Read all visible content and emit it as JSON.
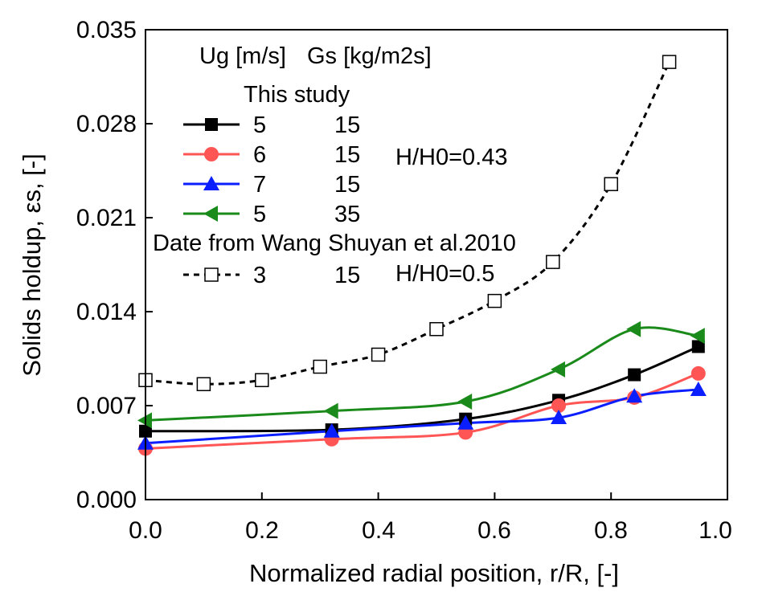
{
  "chart_data": {
    "type": "line",
    "title": "",
    "xlabel": "Normalized radial position, r/R, [-]",
    "ylabel": "Solids holdup, εs, [-]",
    "xlim": [
      0.0,
      1.0
    ],
    "ylim": [
      0.0,
      0.035
    ],
    "x_ticks": [
      "0.0",
      "0.2",
      "0.4",
      "0.6",
      "0.8",
      "1.0"
    ],
    "y_ticks": [
      "0.000",
      "0.007",
      "0.014",
      "0.021",
      "0.028",
      "0.035"
    ],
    "grid": false,
    "legend": {
      "header_ug": "Ug [m/s]",
      "header_gs": "Gs [kg/m2s]",
      "group1_title": "This study",
      "group1_condition": "H/H0=0.43",
      "group2_title": "Date from Wang Shuyan et al.2010",
      "group2_condition": "H/H0=0.5"
    },
    "series": [
      {
        "name": "5 15",
        "ug": "5",
        "gs": "15",
        "color": "#000000",
        "marker": "square",
        "dash": "solid",
        "x": [
          0.0,
          0.32,
          0.55,
          0.71,
          0.84,
          0.95
        ],
        "y": [
          0.0051,
          0.0052,
          0.006,
          0.0074,
          0.0093,
          0.0114
        ]
      },
      {
        "name": "6 15",
        "ug": "6",
        "gs": "15",
        "color": "#ff5555",
        "marker": "circle",
        "dash": "solid",
        "x": [
          0.0,
          0.32,
          0.55,
          0.71,
          0.84,
          0.95
        ],
        "y": [
          0.0038,
          0.0045,
          0.005,
          0.007,
          0.0076,
          0.0094
        ]
      },
      {
        "name": "7 15",
        "ug": "7",
        "gs": "15",
        "color": "#0a1eff",
        "marker": "triangle-up",
        "dash": "solid",
        "x": [
          0.0,
          0.32,
          0.55,
          0.71,
          0.84,
          0.95
        ],
        "y": [
          0.0042,
          0.0051,
          0.0057,
          0.0061,
          0.0077,
          0.0082
        ]
      },
      {
        "name": "5 35",
        "ug": "5",
        "gs": "35",
        "color": "#1a8a1a",
        "marker": "triangle-left",
        "dash": "solid",
        "x": [
          0.0,
          0.32,
          0.55,
          0.71,
          0.84,
          0.95
        ],
        "y": [
          0.0059,
          0.0066,
          0.0073,
          0.0097,
          0.0127,
          0.0122
        ]
      },
      {
        "name": "3 15",
        "ug": "3",
        "gs": "15",
        "color": "#000000",
        "marker": "open-square",
        "dash": "dashed",
        "x": [
          0.0,
          0.1,
          0.2,
          0.3,
          0.4,
          0.5,
          0.6,
          0.7,
          0.8,
          0.9
        ],
        "y": [
          0.0089,
          0.0086,
          0.0089,
          0.0099,
          0.0108,
          0.0127,
          0.0148,
          0.0177,
          0.0235,
          0.0326
        ]
      }
    ]
  }
}
